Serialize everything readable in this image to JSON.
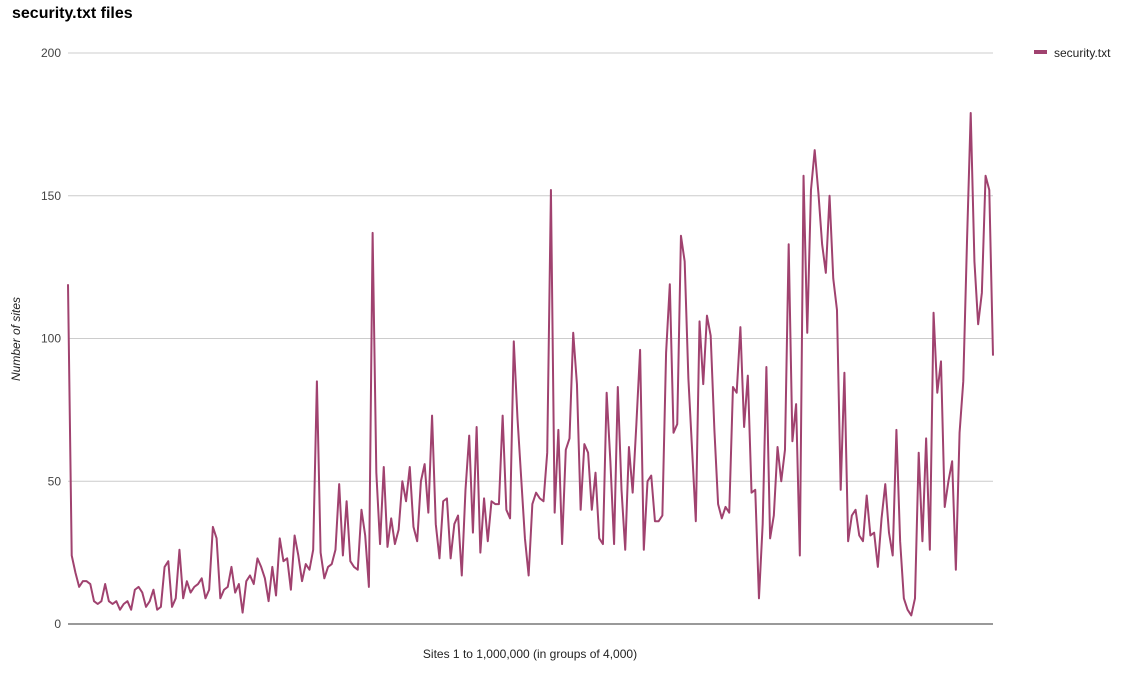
{
  "chart_data": {
    "type": "line",
    "title": "security.txt files",
    "xlabel": "Sites 1 to 1,000,000 (in groups of 4,000)",
    "ylabel": "Number of sites",
    "ylim": [
      0,
      200
    ],
    "yticks": [
      0,
      50,
      100,
      150,
      200
    ],
    "grid": true,
    "legend_position": "top-right",
    "series": [
      {
        "name": "security.txt",
        "color": "#a0426f",
        "values": [
          119,
          24,
          18,
          13,
          15,
          15,
          14,
          8,
          7,
          8,
          14,
          8,
          7,
          8,
          5,
          7,
          8,
          5,
          12,
          13,
          11,
          6,
          8,
          12,
          5,
          6,
          20,
          22,
          6,
          9,
          26,
          9,
          15,
          11,
          13,
          14,
          16,
          9,
          12,
          34,
          30,
          9,
          12,
          13,
          20,
          11,
          14,
          4,
          15,
          17,
          14,
          23,
          20,
          16,
          8,
          20,
          10,
          30,
          22,
          23,
          12,
          31,
          24,
          15,
          21,
          19,
          26,
          85,
          25,
          16,
          20,
          21,
          26,
          49,
          24,
          43,
          22,
          20,
          19,
          40,
          31,
          13,
          137,
          53,
          28,
          55,
          27,
          37,
          28,
          33,
          50,
          43,
          55,
          34,
          29,
          50,
          56,
          39,
          73,
          35,
          23,
          43,
          44,
          23,
          35,
          38,
          17,
          47,
          66,
          32,
          69,
          25,
          44,
          29,
          43,
          42,
          42,
          73,
          40,
          37,
          99,
          72,
          51,
          30,
          17,
          42,
          46,
          44,
          43,
          60,
          152,
          39,
          68,
          28,
          61,
          65,
          102,
          84,
          40,
          63,
          60,
          40,
          53,
          30,
          28,
          81,
          57,
          28,
          83,
          47,
          26,
          62,
          46,
          70,
          96,
          26,
          50,
          52,
          36,
          36,
          38,
          95,
          119,
          67,
          70,
          136,
          127,
          86,
          61,
          36,
          106,
          84,
          108,
          101,
          68,
          42,
          37,
          41,
          39,
          83,
          81,
          104,
          69,
          87,
          46,
          47,
          9,
          35,
          90,
          30,
          38,
          62,
          50,
          61,
          133,
          64,
          77,
          24,
          157,
          102,
          152,
          166,
          151,
          133,
          123,
          150,
          121,
          110,
          47,
          88,
          29,
          38,
          40,
          31,
          29,
          45,
          31,
          32,
          20,
          37,
          49,
          32,
          24,
          68,
          29,
          9,
          5,
          3,
          9,
          60,
          29,
          65,
          26,
          109,
          81,
          92,
          41,
          50,
          57,
          19,
          67,
          85,
          134,
          179,
          127,
          105,
          116,
          157,
          152,
          94
        ]
      }
    ]
  }
}
